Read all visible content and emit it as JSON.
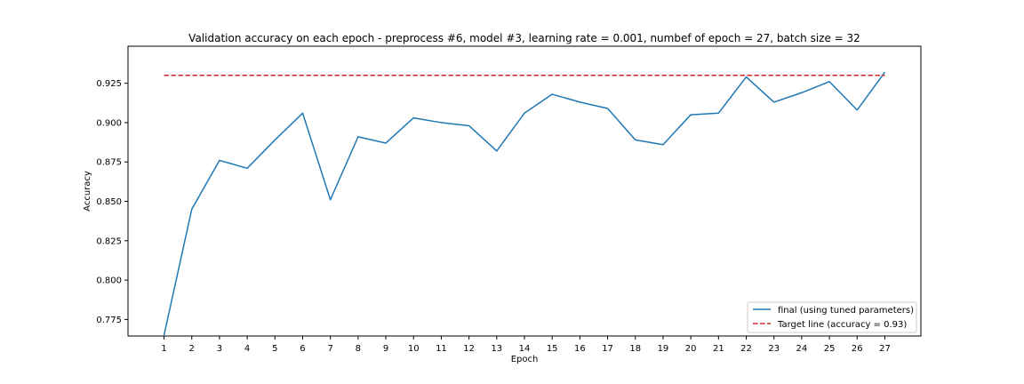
{
  "chart_data": {
    "type": "line",
    "title": "Validation accuracy on each epoch - preprocess #6, model #3, learning rate = 0.001, numbef of epoch = 27, batch size = 32",
    "xlabel": "Epoch",
    "ylabel": "Accuracy",
    "x": [
      1,
      2,
      3,
      4,
      5,
      6,
      7,
      8,
      9,
      10,
      11,
      12,
      13,
      14,
      15,
      16,
      17,
      18,
      19,
      20,
      21,
      22,
      23,
      24,
      25,
      26,
      27
    ],
    "xticks": [
      "1",
      "2",
      "3",
      "4",
      "5",
      "6",
      "7",
      "8",
      "9",
      "10",
      "11",
      "12",
      "13",
      "14",
      "15",
      "16",
      "17",
      "18",
      "19",
      "20",
      "21",
      "22",
      "23",
      "24",
      "25",
      "26",
      "27"
    ],
    "xlim": [
      -0.3,
      28.3
    ],
    "ylim": [
      0.7645,
      0.9485
    ],
    "yticks": [
      "0.775",
      "0.800",
      "0.825",
      "0.850",
      "0.875",
      "0.900",
      "0.925"
    ],
    "grid": false,
    "legend_position": "lower right",
    "series": [
      {
        "name": "final (using tuned parameters)",
        "color": "#1f77b4",
        "style": "solid",
        "values": [
          0.765,
          0.845,
          0.876,
          0.871,
          0.889,
          0.906,
          0.851,
          0.891,
          0.887,
          0.903,
          0.9,
          0.898,
          0.882,
          0.906,
          0.918,
          0.913,
          0.909,
          0.889,
          0.886,
          0.905,
          0.906,
          0.929,
          0.913,
          0.919,
          0.926,
          0.908,
          0.932
        ]
      },
      {
        "name": "Target line (accuracy = 0.93)",
        "color": "#d62728",
        "style": "dashed",
        "values": [
          0.93,
          0.93,
          0.93,
          0.93,
          0.93,
          0.93,
          0.93,
          0.93,
          0.93,
          0.93,
          0.93,
          0.93,
          0.93,
          0.93,
          0.93,
          0.93,
          0.93,
          0.93,
          0.93,
          0.93,
          0.93,
          0.93,
          0.93,
          0.93,
          0.93,
          0.93,
          0.93
        ]
      }
    ]
  }
}
